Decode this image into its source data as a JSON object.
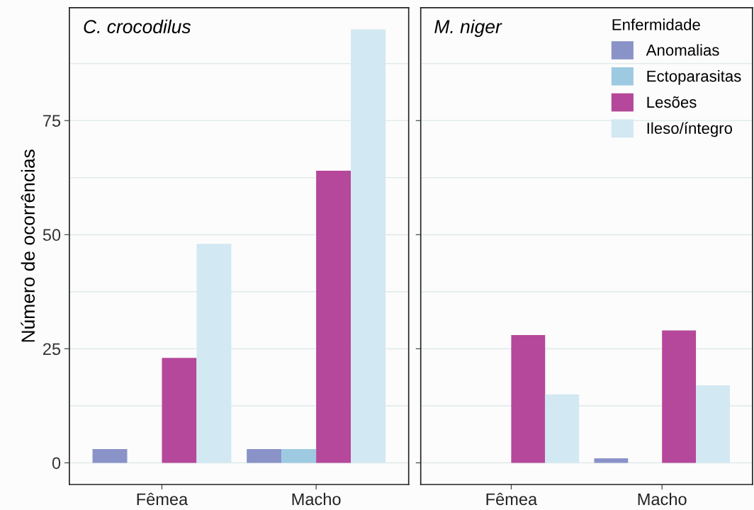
{
  "chart_data": [
    {
      "type": "bar",
      "title": "C. crocodilus",
      "ylabel": "Número de ocorrências",
      "categories": [
        "Fêmea",
        "Macho"
      ],
      "series": [
        {
          "color": "#8a93c8",
          "values": [
            3,
            3
          ]
        },
        {
          "color": "#9ecae1",
          "values": [
            null,
            3
          ]
        },
        {
          "color": "#b5489a",
          "values": [
            23,
            64
          ]
        },
        {
          "color": "#d2e8f2",
          "values": [
            48,
            95
          ]
        }
      ],
      "ylim": [
        -4.75,
        99.75
      ],
      "yticks": [
        0,
        {
          "value": 12.5,
          "label": null
        },
        25,
        {
          "value": 37.5,
          "label": null
        },
        50,
        {
          "value": 62.5,
          "label": null
        },
        75,
        {
          "value": 87.5,
          "label": null
        }
      ],
      "grid": "y",
      "legend": false
    },
    {
      "type": "bar",
      "title": "M. niger",
      "legend_title": "Enfermidade",
      "categories": [
        "Fêmea",
        "Macho"
      ],
      "series": [
        {
          "name": "Anomalias",
          "color": "#8a93c8",
          "values": [
            null,
            1
          ]
        },
        {
          "name": "Ectoparasitas",
          "color": "#9ecae1",
          "values": [
            null,
            null
          ]
        },
        {
          "name": "Lesões",
          "color": "#b5489a",
          "values": [
            28,
            29
          ]
        },
        {
          "name": "Ileso/íntegro",
          "color": "#d2e8f2",
          "values": [
            15,
            17
          ]
        }
      ],
      "ylim": [
        -4.75,
        99.75
      ],
      "yticks": [
        0,
        {
          "value": 12.5,
          "label": null
        },
        25,
        {
          "value": 37.5,
          "label": null
        },
        50,
        {
          "value": 62.5,
          "label": null
        },
        75,
        {
          "value": 87.5,
          "label": null
        }
      ],
      "grid": "y",
      "legend": "top right",
      "tick_labels": "x"
    }
  ]
}
